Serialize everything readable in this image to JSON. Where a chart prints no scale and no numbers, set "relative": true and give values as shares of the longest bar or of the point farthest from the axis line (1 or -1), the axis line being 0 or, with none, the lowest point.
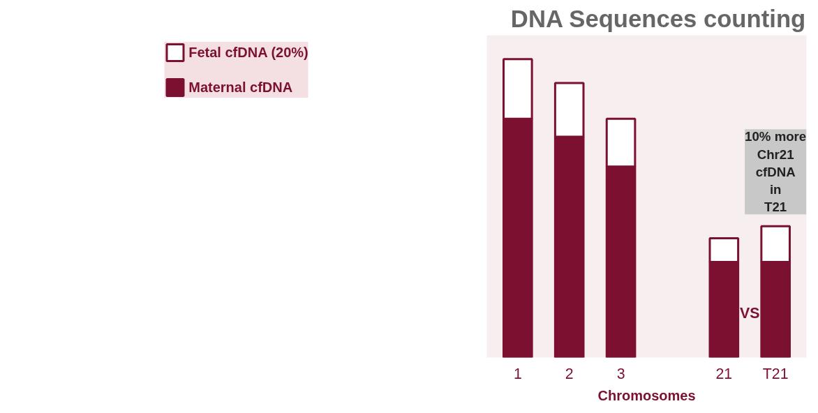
{
  "chart_data": {
    "type": "bar",
    "title": "DNA Sequences counting",
    "xlabel": "Chromosomes",
    "categories": [
      "1",
      "2",
      "3",
      null,
      "21",
      "T21"
    ],
    "stacked": true,
    "relative": true,
    "legend": "left",
    "grid": false,
    "series": [
      {
        "name": "Maternal cfDNA",
        "color": "#7b1030",
        "values": [
          0.8,
          0.74,
          0.64,
          null,
          0.32,
          0.32
        ]
      },
      {
        "name": "Fetal cfDNA (20%)",
        "color": "#ffffff",
        "values": [
          0.2,
          0.18,
          0.16,
          null,
          0.08,
          0.12
        ]
      }
    ],
    "annotations": [
      "10% more Chr21 cfDNA in T21",
      "VS"
    ]
  }
}
